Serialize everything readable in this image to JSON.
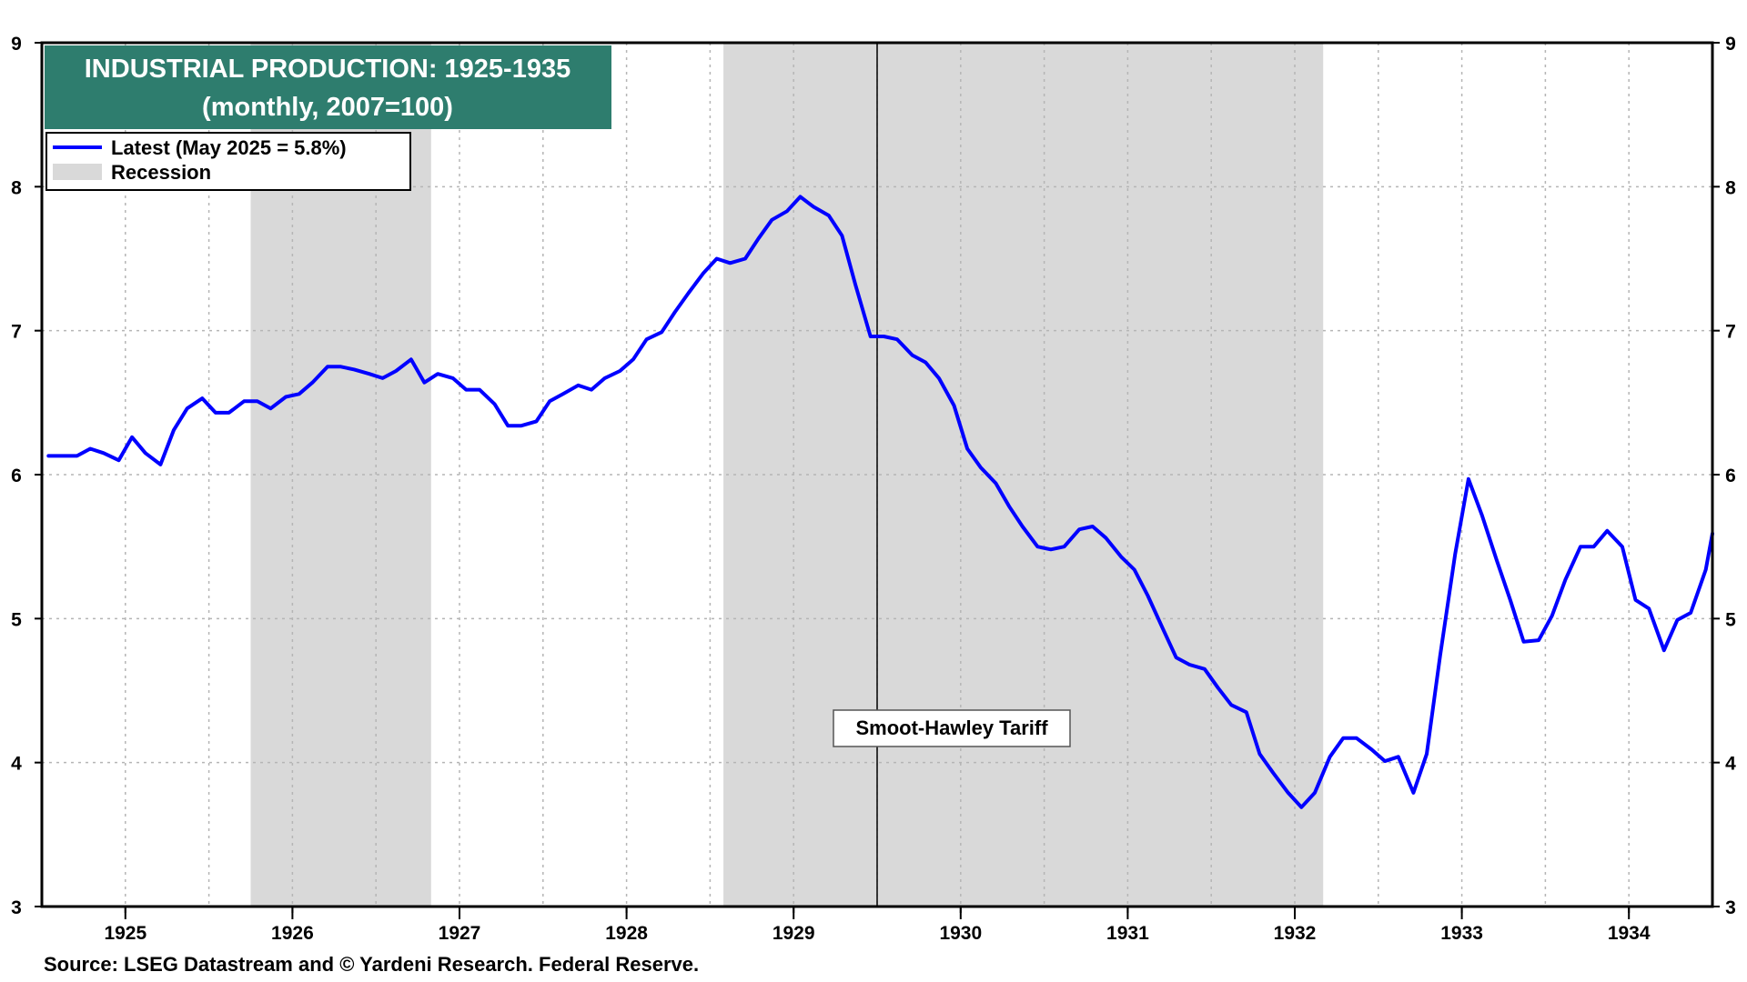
{
  "chart_data": {
    "type": "line",
    "title": "INDUSTRIAL PRODUCTION: 1925-1935",
    "subtitle": "(monthly, 2007=100)",
    "ylim": [
      3,
      9
    ],
    "xlim": [
      1924.5,
      1934.5
    ],
    "y_ticks": [
      "3",
      "4",
      "5",
      "6",
      "7",
      "8",
      "9"
    ],
    "x_ticks": [
      "1925",
      "1926",
      "1927",
      "1928",
      "1929",
      "1930",
      "1931",
      "1932",
      "1933",
      "1934"
    ],
    "grid": true,
    "legend_position": "top-left",
    "legend": {
      "series_label": "Latest (May 2025 = 5.8%)",
      "recession_label": "Recession"
    },
    "recessions": [
      [
        1925.75,
        1926.83
      ],
      [
        1928.58,
        1932.17
      ]
    ],
    "annotation": {
      "label": "Smoot-Hawley Tariff",
      "x": 1929.5
    },
    "series": [
      {
        "name": "Latest (May 2025 = 5.8%)",
        "color": "#0000ff",
        "points": [
          [
            1924.54,
            6.13
          ],
          [
            1924.62,
            6.13
          ],
          [
            1924.71,
            6.13
          ],
          [
            1924.79,
            6.18
          ],
          [
            1924.87,
            6.15
          ],
          [
            1924.96,
            6.1
          ],
          [
            1925.04,
            6.26
          ],
          [
            1925.12,
            6.15
          ],
          [
            1925.21,
            6.07
          ],
          [
            1925.29,
            6.31
          ],
          [
            1925.37,
            6.46
          ],
          [
            1925.46,
            6.53
          ],
          [
            1925.54,
            6.43
          ],
          [
            1925.62,
            6.43
          ],
          [
            1925.71,
            6.51
          ],
          [
            1925.79,
            6.51
          ],
          [
            1925.87,
            6.46
          ],
          [
            1925.96,
            6.54
          ],
          [
            1926.04,
            6.56
          ],
          [
            1926.12,
            6.64
          ],
          [
            1926.21,
            6.75
          ],
          [
            1926.29,
            6.75
          ],
          [
            1926.37,
            6.73
          ],
          [
            1926.46,
            6.7
          ],
          [
            1926.54,
            6.67
          ],
          [
            1926.62,
            6.72
          ],
          [
            1926.71,
            6.8
          ],
          [
            1926.79,
            6.64
          ],
          [
            1926.87,
            6.7
          ],
          [
            1926.96,
            6.67
          ],
          [
            1927.04,
            6.59
          ],
          [
            1927.12,
            6.59
          ],
          [
            1927.21,
            6.49
          ],
          [
            1927.29,
            6.34
          ],
          [
            1927.37,
            6.34
          ],
          [
            1927.46,
            6.37
          ],
          [
            1927.54,
            6.51
          ],
          [
            1927.62,
            6.56
          ],
          [
            1927.71,
            6.62
          ],
          [
            1927.79,
            6.59
          ],
          [
            1927.87,
            6.67
          ],
          [
            1927.96,
            6.72
          ],
          [
            1928.04,
            6.8
          ],
          [
            1928.12,
            6.94
          ],
          [
            1928.21,
            6.99
          ],
          [
            1928.29,
            7.13
          ],
          [
            1928.37,
            7.26
          ],
          [
            1928.46,
            7.4
          ],
          [
            1928.54,
            7.5
          ],
          [
            1928.62,
            7.47
          ],
          [
            1928.71,
            7.5
          ],
          [
            1928.79,
            7.64
          ],
          [
            1928.87,
            7.77
          ],
          [
            1928.96,
            7.83
          ],
          [
            1929.04,
            7.93
          ],
          [
            1929.12,
            7.86
          ],
          [
            1929.21,
            7.8
          ],
          [
            1929.29,
            7.66
          ],
          [
            1929.37,
            7.32
          ],
          [
            1929.46,
            6.96
          ],
          [
            1929.54,
            6.96
          ],
          [
            1929.62,
            6.94
          ],
          [
            1929.71,
            6.83
          ],
          [
            1929.79,
            6.78
          ],
          [
            1929.87,
            6.67
          ],
          [
            1929.96,
            6.48
          ],
          [
            1930.04,
            6.18
          ],
          [
            1930.12,
            6.05
          ],
          [
            1930.21,
            5.94
          ],
          [
            1930.29,
            5.78
          ],
          [
            1930.37,
            5.64
          ],
          [
            1930.46,
            5.5
          ],
          [
            1930.54,
            5.48
          ],
          [
            1930.62,
            5.5
          ],
          [
            1930.71,
            5.62
          ],
          [
            1930.79,
            5.64
          ],
          [
            1930.87,
            5.56
          ],
          [
            1930.96,
            5.43
          ],
          [
            1931.04,
            5.34
          ],
          [
            1931.12,
            5.16
          ],
          [
            1931.21,
            4.93
          ],
          [
            1931.29,
            4.73
          ],
          [
            1931.37,
            4.68
          ],
          [
            1931.46,
            4.65
          ],
          [
            1931.54,
            4.52
          ],
          [
            1931.62,
            4.4
          ],
          [
            1931.71,
            4.35
          ],
          [
            1931.79,
            4.06
          ],
          [
            1931.87,
            3.93
          ],
          [
            1931.96,
            3.79
          ],
          [
            1932.04,
            3.69
          ],
          [
            1932.12,
            3.79
          ],
          [
            1932.21,
            4.04
          ],
          [
            1932.29,
            4.17
          ],
          [
            1932.37,
            4.17
          ],
          [
            1932.46,
            4.09
          ],
          [
            1932.54,
            4.01
          ],
          [
            1932.62,
            4.04
          ],
          [
            1932.71,
            3.79
          ],
          [
            1932.79,
            4.06
          ],
          [
            1932.87,
            4.74
          ],
          [
            1932.96,
            5.45
          ],
          [
            1933.04,
            5.97
          ],
          [
            1933.12,
            5.72
          ],
          [
            1933.21,
            5.4
          ],
          [
            1933.29,
            5.13
          ],
          [
            1933.37,
            4.84
          ],
          [
            1933.46,
            4.85
          ],
          [
            1933.54,
            5.02
          ],
          [
            1933.62,
            5.27
          ],
          [
            1933.71,
            5.5
          ],
          [
            1933.79,
            5.5
          ],
          [
            1933.87,
            5.61
          ],
          [
            1933.96,
            5.5
          ],
          [
            1934.04,
            5.13
          ],
          [
            1934.12,
            5.07
          ],
          [
            1934.21,
            4.78
          ],
          [
            1934.29,
            4.99
          ],
          [
            1934.37,
            5.04
          ],
          [
            1934.46,
            5.34
          ],
          [
            1934.5,
            5.59
          ]
        ]
      }
    ],
    "colors": {
      "recession": "#d9d9d9",
      "title_bg": "#2e7d6e",
      "grid": "#b5b5b5"
    },
    "source": "Source: LSEG Datastream and © Yardeni Research. Federal Reserve."
  }
}
